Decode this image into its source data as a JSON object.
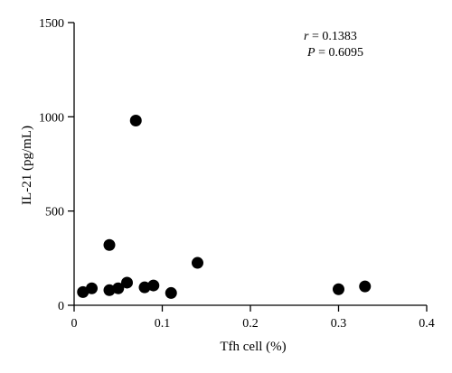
{
  "chart_data": {
    "type": "scatter",
    "xlabel": "Tfh cell (%)",
    "ylabel": "IL-21 (pg/mL)",
    "xlim": [
      0,
      0.4
    ],
    "ylim": [
      0,
      1500
    ],
    "x_ticks": [
      0,
      0.1,
      0.2,
      0.3,
      0.4
    ],
    "x_tick_labels": [
      "0",
      "0.1",
      "0.2",
      "0.3",
      "0.4"
    ],
    "y_ticks": [
      0,
      500,
      1000,
      1500
    ],
    "y_tick_labels": [
      "0",
      "500",
      "1000",
      "1500"
    ],
    "grid": false,
    "annotation": {
      "r_symbol": "r",
      "r_value": " = 0.1383",
      "p_symbol": "P",
      "p_value": " = 0.6095"
    },
    "points": [
      {
        "x": 0.01,
        "y": 70
      },
      {
        "x": 0.02,
        "y": 90
      },
      {
        "x": 0.04,
        "y": 320
      },
      {
        "x": 0.04,
        "y": 80
      },
      {
        "x": 0.05,
        "y": 90
      },
      {
        "x": 0.06,
        "y": 120
      },
      {
        "x": 0.07,
        "y": 980
      },
      {
        "x": 0.08,
        "y": 95
      },
      {
        "x": 0.09,
        "y": 105
      },
      {
        "x": 0.11,
        "y": 65
      },
      {
        "x": 0.14,
        "y": 225
      },
      {
        "x": 0.3,
        "y": 85
      },
      {
        "x": 0.33,
        "y": 100
      }
    ]
  }
}
